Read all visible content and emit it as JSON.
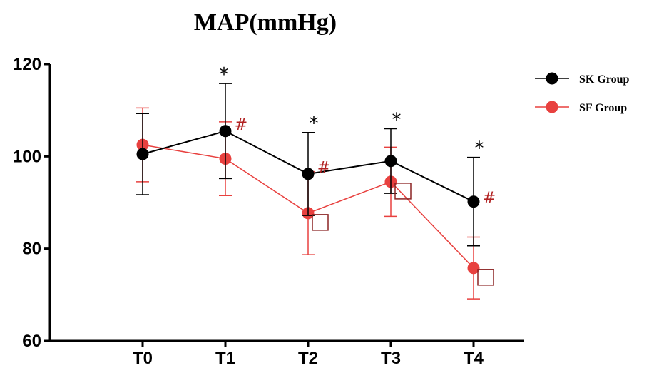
{
  "chart_data": {
    "type": "line",
    "title": "MAP(mmHg)",
    "xlabel": "",
    "ylabel": "",
    "categories": [
      "T0",
      "T1",
      "T2",
      "T3",
      "T4"
    ],
    "ylim": [
      60,
      120
    ],
    "yticks": [
      60,
      80,
      100,
      120
    ],
    "grid": false,
    "legend_position": "top-right",
    "series": [
      {
        "name": "SK Group",
        "color": "#000000",
        "values": [
          100.5,
          105.5,
          96.2,
          99.0,
          90.2
        ],
        "error": [
          8.8,
          10.3,
          9.0,
          7.0,
          9.6
        ]
      },
      {
        "name": "SF Group",
        "color": "#e8413f",
        "values": [
          102.5,
          99.5,
          87.7,
          94.5,
          75.8
        ],
        "error": [
          8.0,
          8.0,
          9.0,
          7.5,
          6.7
        ]
      }
    ],
    "annotations": {
      "star_symbol": "*",
      "star_color": "#000000",
      "star_at": [
        "T1",
        "T2",
        "T3",
        "T4"
      ],
      "hash_symbol": "#",
      "hash_color": "#b22222",
      "hash_at": [
        "T1",
        "T2",
        "T4"
      ],
      "square_color": "#8b2323",
      "square_at": [
        "T2",
        "T3",
        "T4"
      ]
    }
  }
}
